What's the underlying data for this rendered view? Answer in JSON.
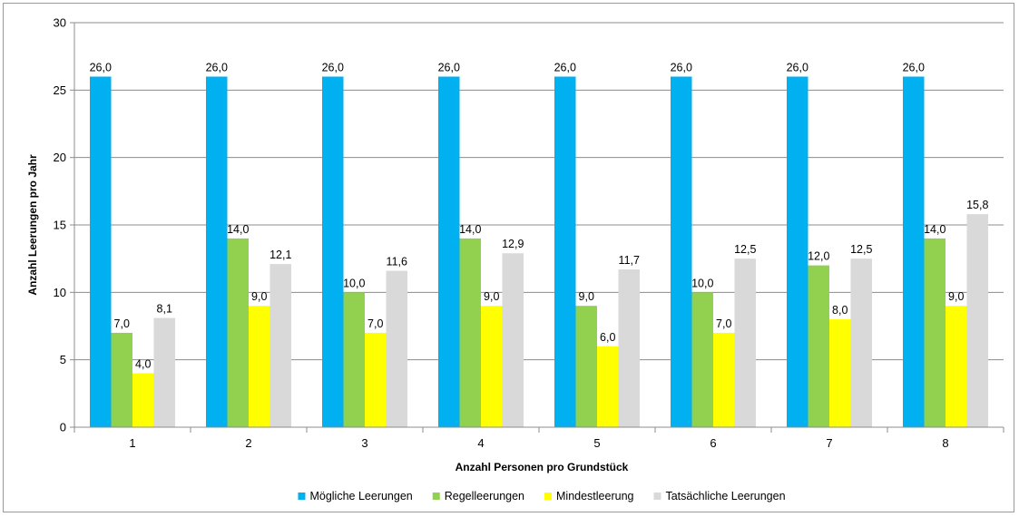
{
  "chart_data": {
    "type": "bar",
    "xlabel": "Anzahl Personen pro Grundstück",
    "ylabel": "Anzahl Leerungen pro Jahr",
    "categories": [
      "1",
      "2",
      "3",
      "4",
      "5",
      "6",
      "7",
      "8"
    ],
    "ylim": [
      0,
      30
    ],
    "yticks": [
      "0",
      "5",
      "10",
      "15",
      "20",
      "25",
      "30"
    ],
    "grid": true,
    "legend_position": "bottom",
    "series": [
      {
        "name": "Mögliche Leerungen",
        "color": "#00B0F0",
        "values": [
          26.0,
          26.0,
          26.0,
          26.0,
          26.0,
          26.0,
          26.0,
          26.0
        ],
        "labels": [
          "26,0",
          "26,0",
          "26,0",
          "26,0",
          "26,0",
          "26,0",
          "26,0",
          "26,0"
        ]
      },
      {
        "name": "Regelleerungen",
        "color": "#92D050",
        "values": [
          7.0,
          14.0,
          10.0,
          14.0,
          9.0,
          10.0,
          12.0,
          14.0
        ],
        "labels": [
          "7,0",
          "14,0",
          "10,0",
          "14,0",
          "9,0",
          "10,0",
          "12,0",
          "14,0"
        ]
      },
      {
        "name": "Mindestleerung",
        "color": "#FFFF00",
        "values": [
          4.0,
          9.0,
          7.0,
          9.0,
          6.0,
          7.0,
          8.0,
          9.0
        ],
        "labels": [
          "4,0",
          "9,0",
          "7,0",
          "9,0",
          "6,0",
          "7,0",
          "8,0",
          "9,0"
        ]
      },
      {
        "name": "Tatsächliche Leerungen",
        "color": "#D9D9D9",
        "values": [
          8.1,
          12.1,
          11.6,
          12.9,
          11.7,
          12.5,
          12.5,
          15.8
        ],
        "labels": [
          "8,1",
          "12,1",
          "11,6",
          "12,9",
          "11,7",
          "12,5",
          "12,5",
          "15,8"
        ]
      }
    ]
  }
}
